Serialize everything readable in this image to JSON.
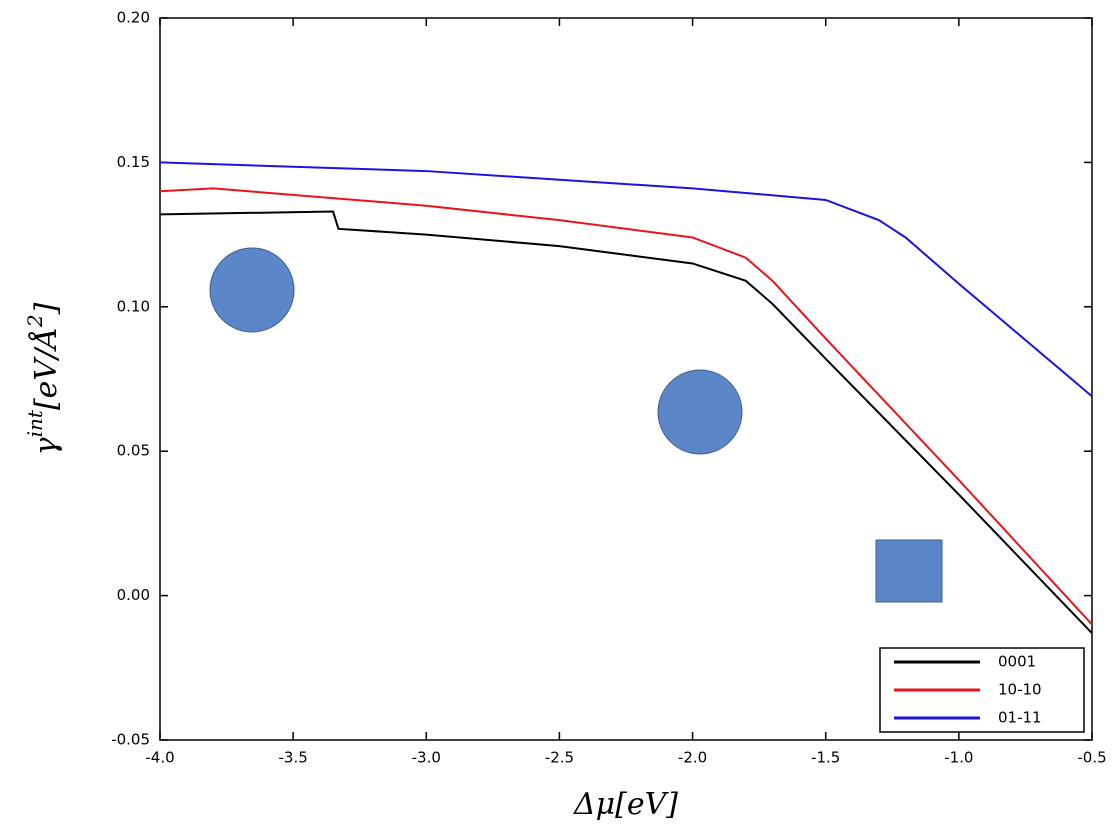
{
  "chart_data": {
    "type": "line",
    "x_label": [
      "Δμ",
      "[eV]"
    ],
    "y_label": [
      "γ",
      "int",
      "[eV/Å",
      "2",
      "]"
    ],
    "xlim": [
      -4.0,
      -0.5
    ],
    "ylim": [
      -0.05,
      0.2
    ],
    "xticks": [
      {
        "value": -4,
        "label": "-4.0"
      },
      {
        "value": -3.5,
        "label": "-3.5"
      },
      {
        "value": -3,
        "label": "-3.0"
      },
      {
        "value": -2.5,
        "label": "-2.5"
      },
      {
        "value": -2,
        "label": "-2.0"
      },
      {
        "value": -1.5,
        "label": "-1.5"
      },
      {
        "value": -1,
        "label": "-1.0"
      },
      {
        "value": -0.5,
        "label": "-0.5"
      }
    ],
    "yticks": [
      -0.05,
      {
        "value": 0,
        "label": "0.00"
      },
      0.05,
      {
        "value": 0.1,
        "label": "0.10"
      },
      0.15,
      {
        "value": 0.2,
        "label": "0.20"
      }
    ],
    "legend": "lower right",
    "series": [
      {
        "name": "0001",
        "color": "#000000",
        "x": [
          -4.0,
          -3.35,
          -3.33,
          -3.0,
          -2.5,
          -2.0,
          -1.8,
          -1.7,
          -1.5,
          -1.0,
          -0.5
        ],
        "values": [
          0.132,
          0.133,
          0.127,
          0.125,
          0.121,
          0.115,
          0.109,
          0.101,
          0.082,
          0.035,
          -0.013
        ]
      },
      {
        "name": "10-10",
        "color": "#e8141a",
        "x": [
          -4.0,
          -3.8,
          -3.0,
          -2.5,
          -2.0,
          -1.8,
          -1.7,
          -1.5,
          -1.0,
          -0.5
        ],
        "values": [
          0.14,
          0.141,
          0.135,
          0.13,
          0.124,
          0.117,
          0.109,
          0.089,
          0.04,
          -0.01
        ]
      },
      {
        "name": "01-11",
        "color": "#1a14e0",
        "x": [
          -4.0,
          -3.0,
          -2.5,
          -2.0,
          -1.5,
          -1.3,
          -1.2,
          -1.0,
          -0.5
        ],
        "values": [
          0.15,
          0.147,
          0.144,
          0.141,
          0.137,
          0.13,
          0.124,
          0.108,
          0.069
        ]
      }
    ]
  }
}
